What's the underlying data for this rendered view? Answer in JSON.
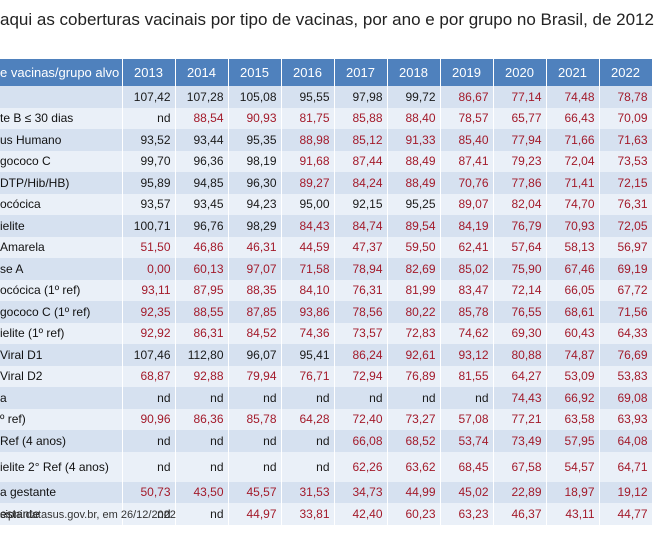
{
  "title": "aqui as coberturas vacinais por tipo de vacinas, por ano e por grupo no Brasil, de 2012",
  "header": {
    "label": "e vacinas/grupo alvo",
    "years": [
      "2013",
      "2014",
      "2015",
      "2016",
      "2017",
      "2018",
      "2019",
      "2020",
      "2021",
      "2022"
    ]
  },
  "rows": [
    {
      "label": "",
      "values": [
        "107,42",
        "107,28",
        "105,08",
        "95,55",
        "97,98",
        "99,72",
        "86,67",
        "77,14",
        "74,48",
        "78,78"
      ],
      "red_from": 6
    },
    {
      "label": "te B ≤ 30 dias",
      "values": [
        "nd",
        "88,54",
        "90,93",
        "81,75",
        "85,88",
        "88,40",
        "78,57",
        "65,77",
        "66,43",
        "70,09"
      ],
      "red_from": 1
    },
    {
      "label": "us Humano",
      "values": [
        "93,52",
        "93,44",
        "95,35",
        "88,98",
        "85,12",
        "91,33",
        "85,40",
        "77,94",
        "71,66",
        "71,63"
      ],
      "red_from": 3
    },
    {
      "label": "gococo C",
      "values": [
        "99,70",
        "96,36",
        "98,19",
        "91,68",
        "87,44",
        "88,49",
        "87,41",
        "79,23",
        "72,04",
        "73,53"
      ],
      "red_from": 3
    },
    {
      "label": "DTP/Hib/HB)",
      "values": [
        "95,89",
        "94,85",
        "96,30",
        "89,27",
        "84,24",
        "88,49",
        "70,76",
        "77,86",
        "71,41",
        "72,15"
      ],
      "red_from": 3
    },
    {
      "label": "ocócica",
      "values": [
        "93,57",
        "93,45",
        "94,23",
        "95,00",
        "92,15",
        "95,25",
        "89,07",
        "82,04",
        "74,70",
        "76,31"
      ],
      "red_from": 6
    },
    {
      "label": "ielite",
      "values": [
        "100,71",
        "96,76",
        "98,29",
        "84,43",
        "84,74",
        "89,54",
        "84,19",
        "76,79",
        "70,93",
        "72,05"
      ],
      "red_from": 3
    },
    {
      "label": "Amarela",
      "values": [
        "51,50",
        "46,86",
        "46,31",
        "44,59",
        "47,37",
        "59,50",
        "62,41",
        "57,64",
        "58,13",
        "56,97"
      ],
      "red_from": 0
    },
    {
      "label": "se A",
      "values": [
        "0,00",
        "60,13",
        "97,07",
        "71,58",
        "78,94",
        "82,69",
        "85,02",
        "75,90",
        "67,46",
        "69,19"
      ],
      "red_from": 0
    },
    {
      "label": "ocócica (1º ref)",
      "values": [
        "93,11",
        "87,95",
        "88,35",
        "84,10",
        "76,31",
        "81,99",
        "83,47",
        "72,14",
        "66,05",
        "67,72"
      ],
      "red_from": 0
    },
    {
      "label": "gococo C (1º ref)",
      "values": [
        "92,35",
        "88,55",
        "87,85",
        "93,86",
        "78,56",
        "80,22",
        "85,78",
        "76,55",
        "68,61",
        "71,56"
      ],
      "red_from": 0
    },
    {
      "label": "ielite (1º ref)",
      "values": [
        "92,92",
        "86,31",
        "84,52",
        "74,36",
        "73,57",
        "72,83",
        "74,62",
        "69,30",
        "60,43",
        "64,33"
      ],
      "red_from": 0
    },
    {
      "label": "Viral  D1",
      "values": [
        "107,46",
        "112,80",
        "96,07",
        "95,41",
        "86,24",
        "92,61",
        "93,12",
        "80,88",
        "74,87",
        "76,69"
      ],
      "red_from": 4
    },
    {
      "label": "Viral  D2",
      "values": [
        "68,87",
        "92,88",
        "79,94",
        "76,71",
        "72,94",
        "76,89",
        "81,55",
        "64,27",
        "53,09",
        "53,83"
      ],
      "red_from": 0
    },
    {
      "label": "a",
      "values": [
        "nd",
        "nd",
        "nd",
        "nd",
        "nd",
        "nd",
        "nd",
        "74,43",
        "66,92",
        "69,08"
      ],
      "red_from": 7
    },
    {
      "label": "º ref)",
      "values": [
        "90,96",
        "86,36",
        "85,78",
        "64,28",
        "72,40",
        "73,27",
        "57,08",
        "77,21",
        "63,58",
        "63,93"
      ],
      "red_from": 0
    },
    {
      "label": "Ref (4 anos)",
      "values": [
        "nd",
        "nd",
        "nd",
        "nd",
        "66,08",
        "68,52",
        "53,74",
        "73,49",
        "57,95",
        "64,08"
      ],
      "red_from": 4
    },
    {
      "label": "ielite 2° Ref (4 anos)",
      "values": [
        "nd",
        "nd",
        "nd",
        "nd",
        "62,26",
        "63,62",
        "68,45",
        "67,58",
        "54,57",
        "64,71"
      ],
      "red_from": 4,
      "tall": true
    },
    {
      "label": "a gestante",
      "values": [
        "50,73",
        "43,50",
        "45,57",
        "31,53",
        "34,73",
        "44,99",
        "45,02",
        "22,89",
        "18,97",
        "19,12"
      ],
      "red_from": 0
    },
    {
      "label": "estante",
      "values": [
        "nd",
        "nd",
        "44,97",
        "33,81",
        "42,40",
        "60,23",
        "63,23",
        "46,37",
        "43,11",
        "44,77"
      ],
      "red_from": 2
    }
  ],
  "source": "sipni.datasus.gov.br, em 26/12/2022",
  "colors": {
    "header_bg": "#4f81bd",
    "row_odd": "#d6e1f0",
    "row_even": "#eaf0f8",
    "red_text": "#a31a2a"
  }
}
